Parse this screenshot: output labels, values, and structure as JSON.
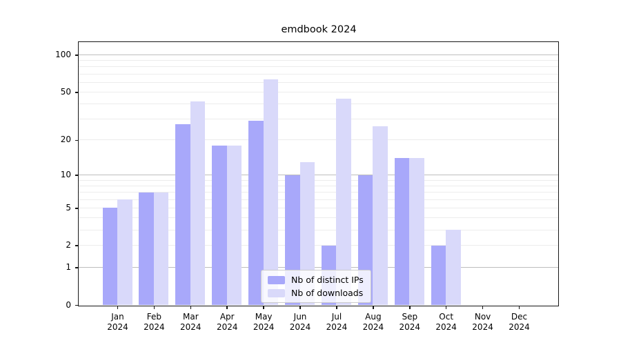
{
  "title": "emdbook 2024",
  "chart_data": {
    "type": "bar",
    "title": "emdbook 2024",
    "categories": [
      "Jan 2024",
      "Feb 2024",
      "Mar 2024",
      "Apr 2024",
      "May 2024",
      "Jun 2024",
      "Jul 2024",
      "Aug 2024",
      "Sep 2024",
      "Oct 2024",
      "Nov 2024",
      "Dec 2024"
    ],
    "series": [
      {
        "name": "Nb of distinct IPs",
        "color": "#a8a8fa",
        "values": [
          5,
          7,
          27,
          18,
          29,
          10,
          2,
          10,
          14,
          2,
          0,
          0
        ]
      },
      {
        "name": "Nb of downloads",
        "color": "#d9d9fa",
        "values": [
          6,
          7,
          42,
          18,
          63,
          13,
          44,
          26,
          14,
          3,
          0,
          0
        ]
      }
    ],
    "xlabel": "",
    "ylabel": "",
    "y_axis": {
      "scale": "log10(value+1)",
      "tick_values": [
        0,
        1,
        2,
        5,
        10,
        20,
        50,
        100
      ],
      "tick_labels": [
        "0",
        "1",
        "2",
        "5",
        "10",
        "20",
        "50",
        "100"
      ],
      "major_gridlines": [
        1,
        10,
        100
      ],
      "minor_gridlines": [
        2,
        3,
        4,
        5,
        6,
        7,
        8,
        9,
        20,
        30,
        40,
        50,
        60,
        70,
        80,
        90
      ],
      "ylim": [
        0,
        127
      ],
      "grid": true
    },
    "legend": {
      "position": "lower center",
      "entries": [
        "Nb of distinct IPs",
        "Nb of downloads"
      ]
    }
  },
  "colors": {
    "bar_distinct_ips": "#a8a8fa",
    "bar_downloads": "#d9d9fa",
    "grid_major": "#bdbdbd",
    "grid_minor": "#ececec",
    "spine": "#151515",
    "legend_border": "#cccccc",
    "background": "#ffffff"
  }
}
